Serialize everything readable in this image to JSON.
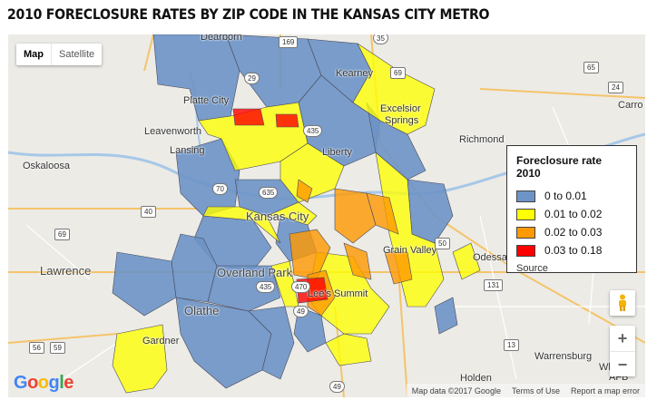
{
  "title": "2010 FORECLOSURE RATES BY ZIP CODE IN THE KANSAS CITY METRO",
  "map_type": {
    "map_label": "Map",
    "satellite_label": "Satellite",
    "selected": "Map"
  },
  "legend": {
    "title": "Foreclosure rate 2010",
    "items": [
      {
        "label": "0 to 0.01",
        "color": "#6d94c6"
      },
      {
        "label": "0.01 to 0.02",
        "color": "#ffff00"
      },
      {
        "label": "0.02 to 0.03",
        "color": "#ff9900"
      },
      {
        "label": "0.03 to 0.18",
        "color": "#ff0000"
      }
    ],
    "source_link": "Source"
  },
  "place_labels": {
    "platte_city": "Platte City",
    "kearney": "Kearney",
    "excelsior": "Excelsior",
    "springs": "Springs",
    "leavenworth": "Leavenworth",
    "lansing": "Lansing",
    "liberty": "Liberty",
    "richmond": "Richmond",
    "oskaloosa": "Oskaloosa",
    "kansas_city": "Kansas City",
    "grain_valley": "Grain Valley",
    "lawrence": "Lawrence",
    "overland_park": "Overland Park",
    "odessa": "Odessa",
    "lees_summit": "Lee's Summit",
    "olathe": "Olathe",
    "gardner": "Gardner",
    "warrensburg": "Warrensburg",
    "holden": "Holden",
    "carrollton": "Carro",
    "dearborn": "Dearborn",
    "af_b": "AFB",
    "wh": "Wh"
  },
  "highway_shields": [
    "169",
    "35",
    "69",
    "29",
    "435",
    "70",
    "635",
    "40",
    "435",
    "470",
    "49",
    "50",
    "56",
    "59",
    "131",
    "13",
    "49",
    "65",
    "24",
    "69"
  ],
  "controls": {
    "zoom_in": "+",
    "zoom_out": "−",
    "pegman_icon": "pegman-icon"
  },
  "google_logo": "Google",
  "attribution": {
    "map_data": "Map data ©2017 Google",
    "terms": "Terms of Use",
    "report": "Report a map error"
  }
}
